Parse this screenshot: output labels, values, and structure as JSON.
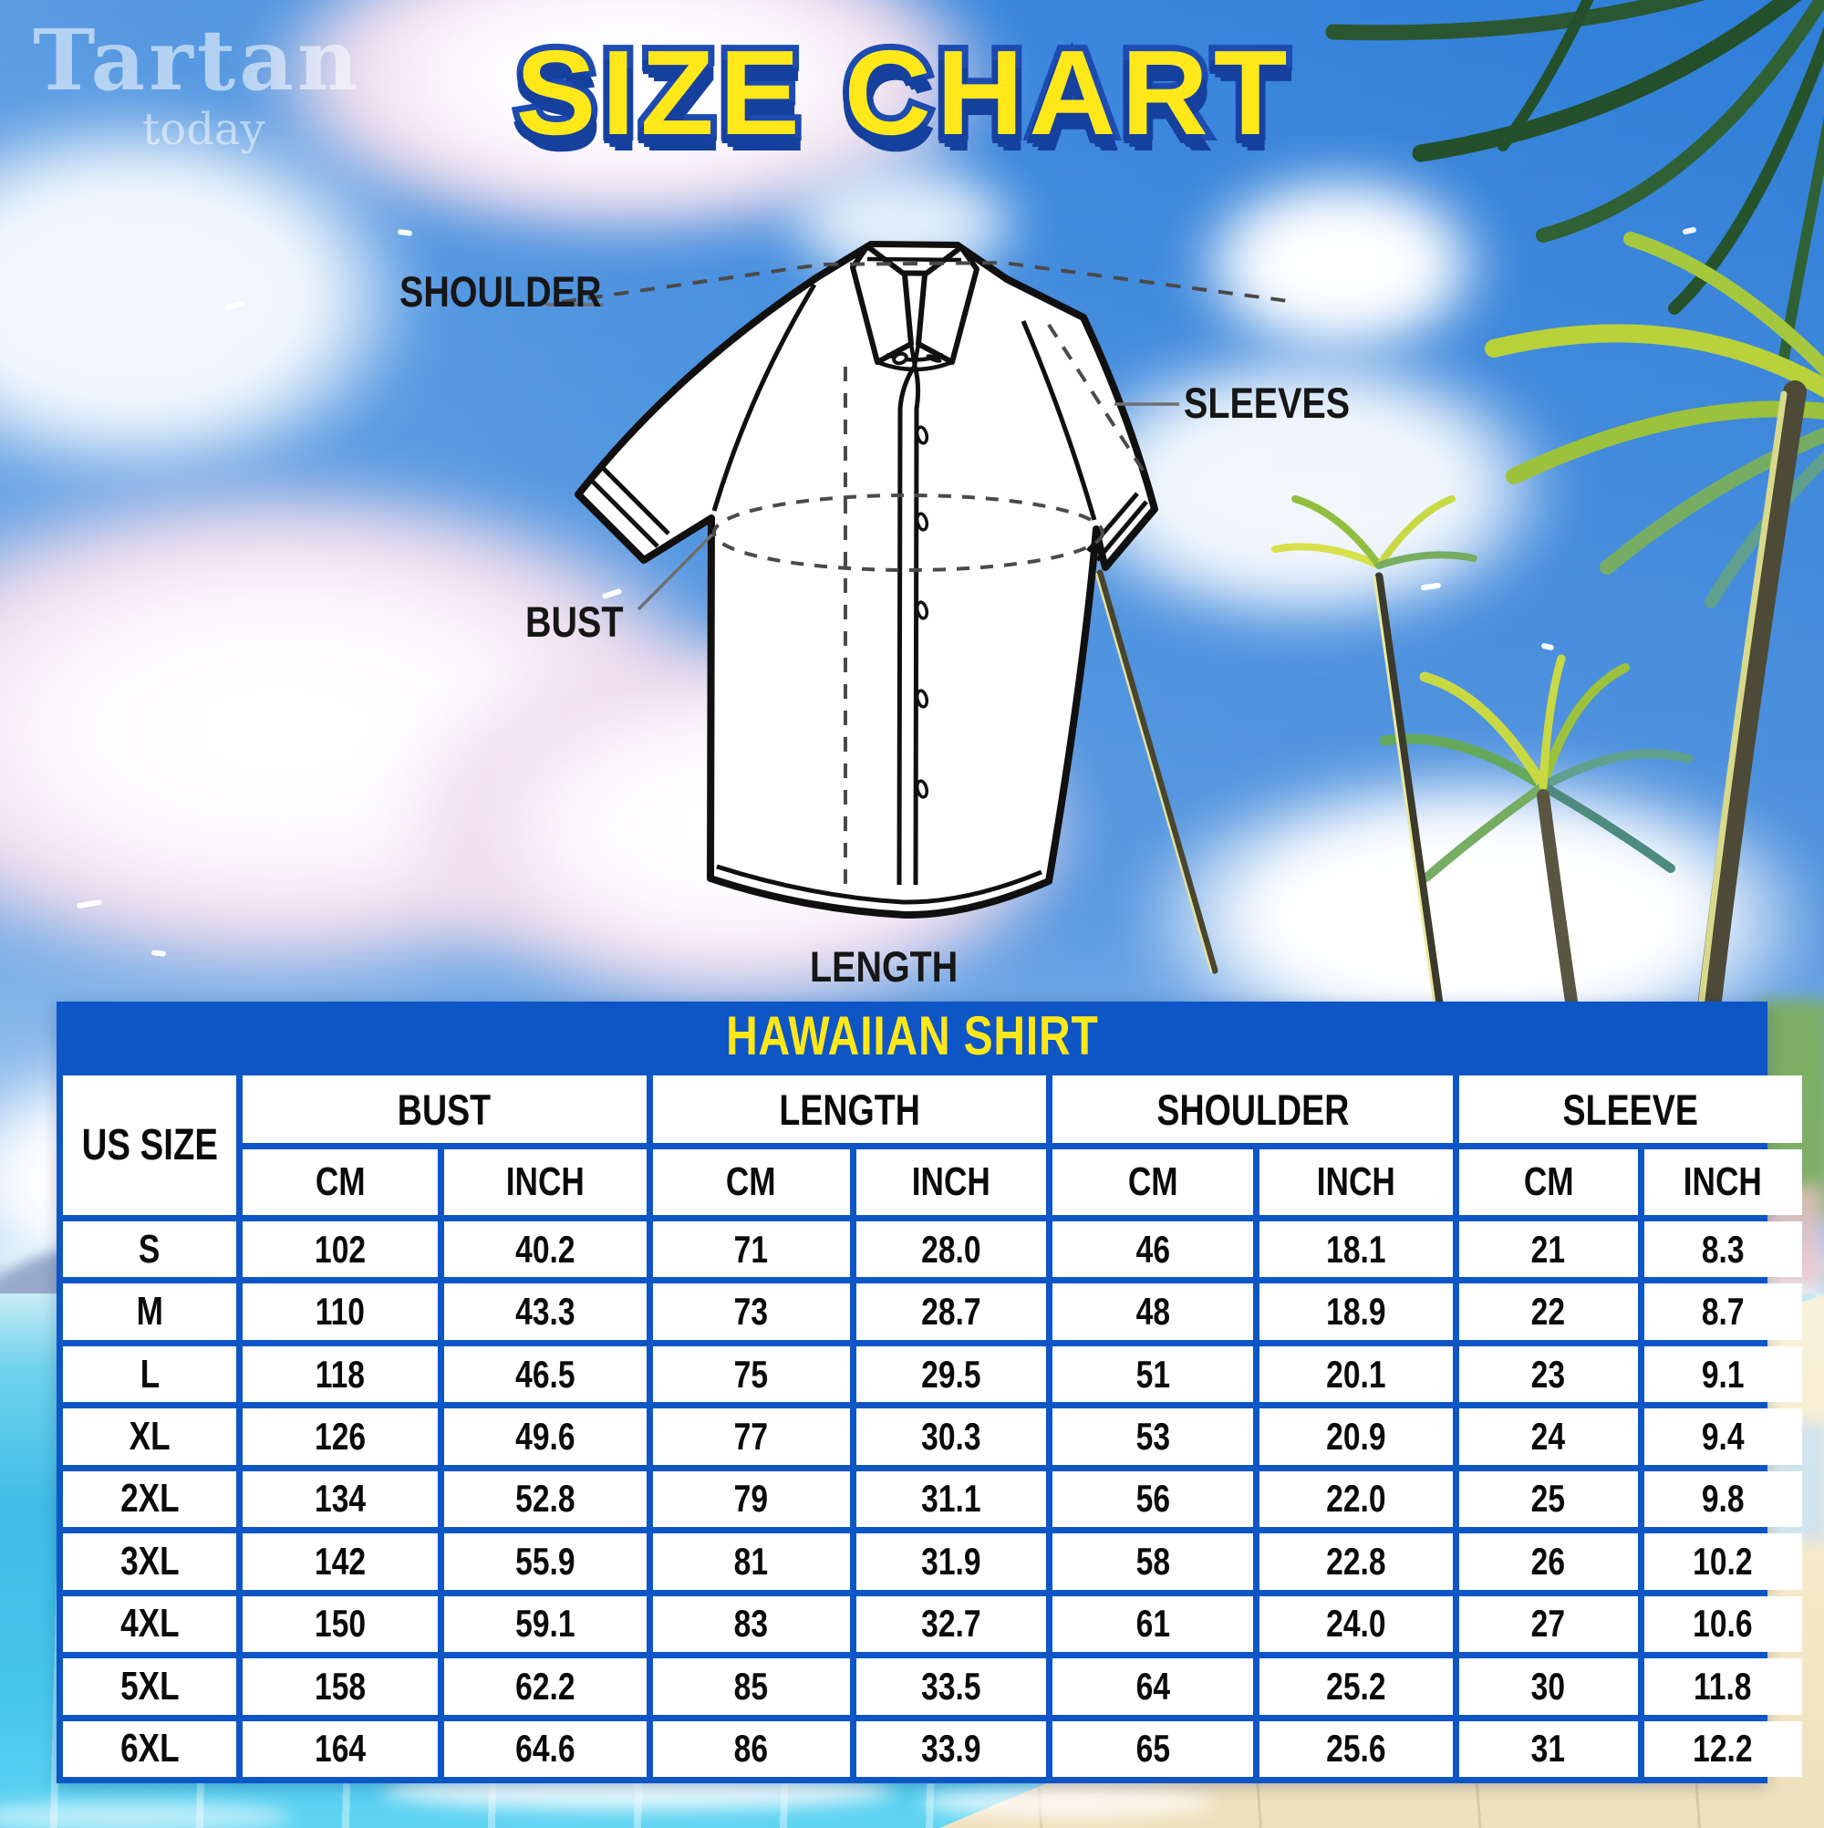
{
  "watermark": {
    "line1": "Tartan",
    "line2": "today"
  },
  "title": "SIZE CHART",
  "diagram": {
    "labels": {
      "shoulder": "SHOULDER",
      "sleeves": "SLEEVES",
      "bust": "BUST",
      "length": "LENGTH"
    }
  },
  "table": {
    "title": "HAWAIIAN SHIRT",
    "corner_header": "US SIZE",
    "groups": [
      {
        "label": "BUST"
      },
      {
        "label": "LENGTH"
      },
      {
        "label": "SHOULDER"
      },
      {
        "label": "SLEEVE"
      }
    ],
    "unit_headers": [
      "CM",
      "INCH",
      "CM",
      "INCH",
      "CM",
      "INCH",
      "CM",
      "INCH"
    ],
    "rows": [
      {
        "size": "S",
        "values": [
          "102",
          "40.2",
          "71",
          "28.0",
          "46",
          "18.1",
          "21",
          "8.3"
        ]
      },
      {
        "size": "M",
        "values": [
          "110",
          "43.3",
          "73",
          "28.7",
          "48",
          "18.9",
          "22",
          "8.7"
        ]
      },
      {
        "size": "L",
        "values": [
          "118",
          "46.5",
          "75",
          "29.5",
          "51",
          "20.1",
          "23",
          "9.1"
        ]
      },
      {
        "size": "XL",
        "values": [
          "126",
          "49.6",
          "77",
          "30.3",
          "53",
          "20.9",
          "24",
          "9.4"
        ]
      },
      {
        "size": "2XL",
        "values": [
          "134",
          "52.8",
          "79",
          "31.1",
          "56",
          "22.0",
          "25",
          "9.8"
        ]
      },
      {
        "size": "3XL",
        "values": [
          "142",
          "55.9",
          "81",
          "31.9",
          "58",
          "22.8",
          "26",
          "10.2"
        ]
      },
      {
        "size": "4XL",
        "values": [
          "150",
          "59.1",
          "83",
          "32.7",
          "61",
          "24.0",
          "27",
          "10.6"
        ]
      },
      {
        "size": "5XL",
        "values": [
          "158",
          "62.2",
          "85",
          "33.5",
          "64",
          "25.2",
          "30",
          "11.8"
        ]
      },
      {
        "size": "6XL",
        "values": [
          "164",
          "64.6",
          "86",
          "33.9",
          "65",
          "25.6",
          "31",
          "12.2"
        ]
      }
    ]
  },
  "chart_data": {
    "type": "table",
    "title": "HAWAIIAN SHIRT",
    "column_groups": [
      "BUST",
      "LENGTH",
      "SHOULDER",
      "SLEEVE"
    ],
    "columns": [
      "US SIZE",
      "BUST CM",
      "BUST INCH",
      "LENGTH CM",
      "LENGTH INCH",
      "SHOULDER CM",
      "SHOULDER INCH",
      "SLEEVE CM",
      "SLEEVE INCH"
    ],
    "rows": [
      [
        "S",
        102,
        40.2,
        71,
        28.0,
        46,
        18.1,
        21,
        8.3
      ],
      [
        "M",
        110,
        43.3,
        73,
        28.7,
        48,
        18.9,
        22,
        8.7
      ],
      [
        "L",
        118,
        46.5,
        75,
        29.5,
        51,
        20.1,
        23,
        9.1
      ],
      [
        "XL",
        126,
        49.6,
        77,
        30.3,
        53,
        20.9,
        24,
        9.4
      ],
      [
        "2XL",
        134,
        52.8,
        79,
        31.1,
        56,
        22.0,
        25,
        9.8
      ],
      [
        "3XL",
        142,
        55.9,
        81,
        31.9,
        58,
        22.8,
        26,
        10.2
      ],
      [
        "4XL",
        150,
        59.1,
        83,
        32.7,
        61,
        24.0,
        27,
        10.6
      ],
      [
        "5XL",
        158,
        62.2,
        85,
        33.5,
        64,
        25.2,
        30,
        11.8
      ],
      [
        "6XL",
        164,
        64.6,
        86,
        33.9,
        65,
        25.6,
        31,
        12.2
      ]
    ]
  },
  "colors": {
    "table_blue": "#0e55c6",
    "accent_yellow": "#ffe81a",
    "title_outline": "#1d4bb2",
    "sky_blue": "#2f82da",
    "sea_turquoise": "#41c0e8",
    "sand": "#f4e7c6"
  }
}
